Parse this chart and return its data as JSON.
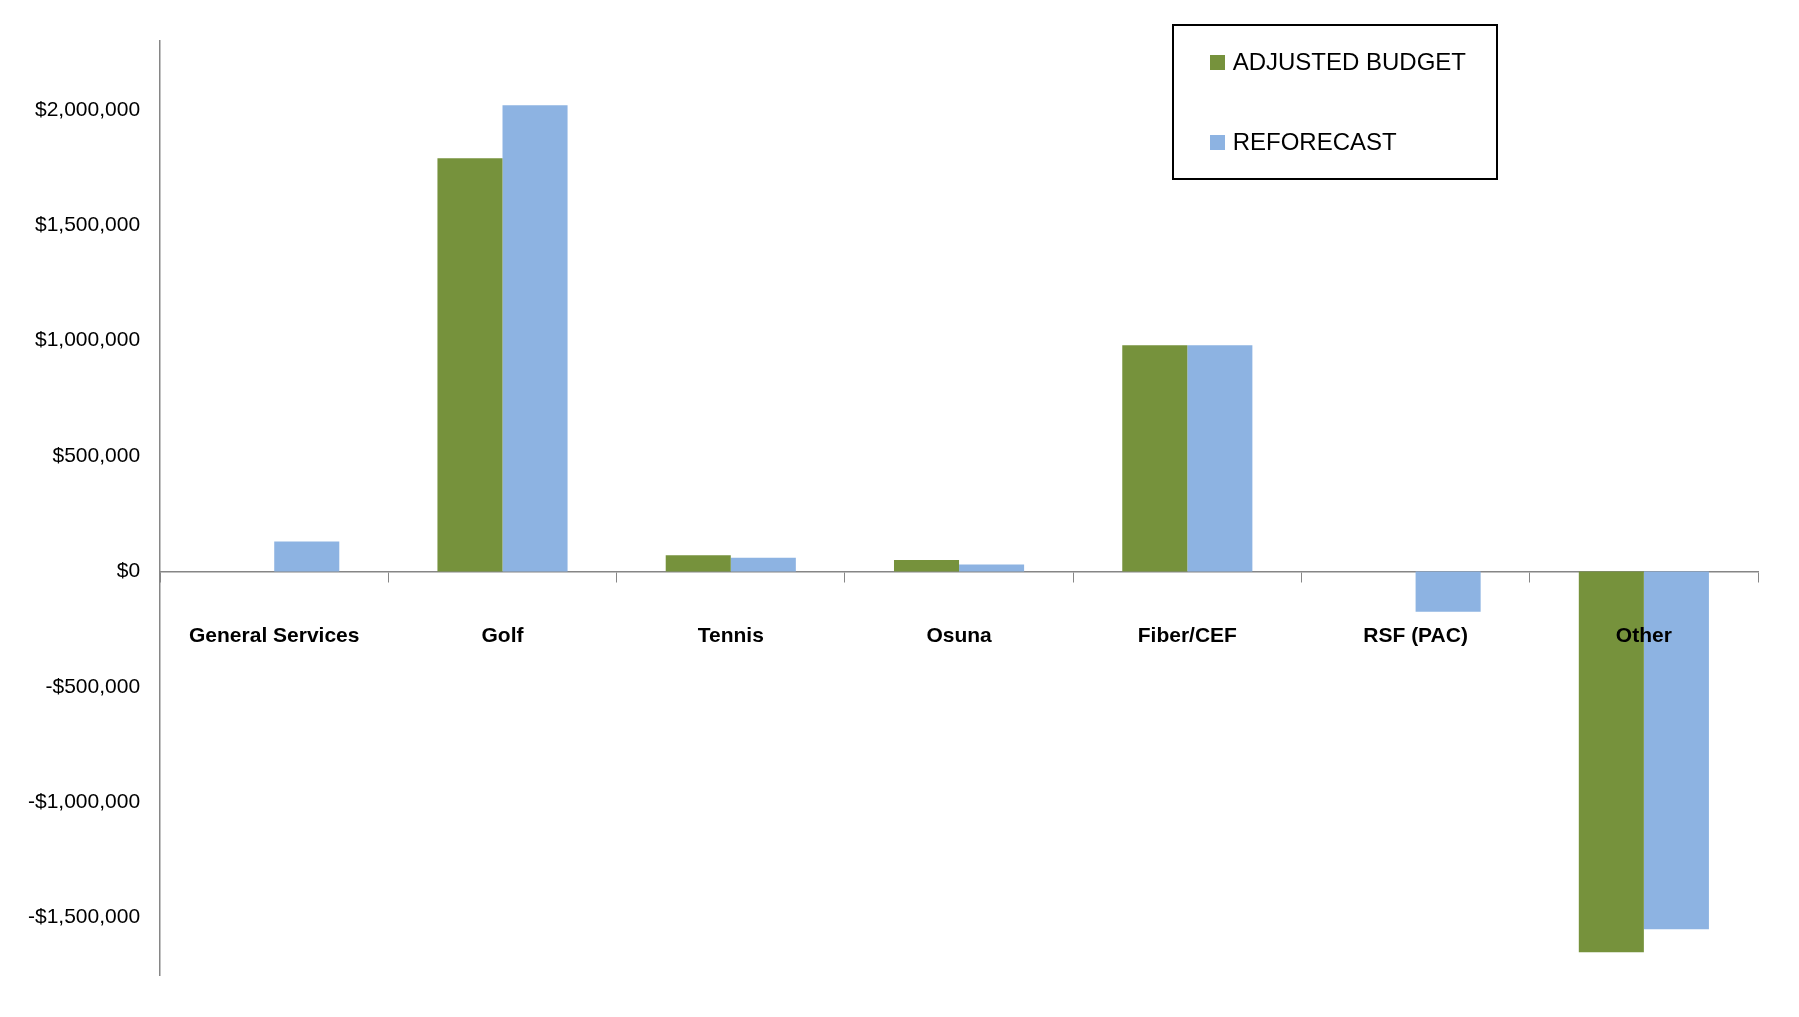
{
  "chart_data": {
    "type": "bar",
    "categories": [
      "General Services",
      "Golf",
      "Tennis",
      "Osuna",
      "Fiber/CEF",
      "RSF (PAC)",
      "Other"
    ],
    "series": [
      {
        "name": "ADJUSTED BUDGET",
        "color": "#76923c",
        "values": [
          null,
          1790000,
          70000,
          50000,
          980000,
          null,
          -1650000
        ]
      },
      {
        "name": "REFORECAST",
        "color": "#8db3e2",
        "values": [
          130000,
          2020000,
          60000,
          30000,
          980000,
          -175000,
          -1550000
        ]
      }
    ],
    "ylim": [
      -1750000,
      2300000
    ],
    "yticks": [
      {
        "value": -1500000,
        "label": "-$1,500,000"
      },
      {
        "value": -1000000,
        "label": "-$1,000,000"
      },
      {
        "value": -500000,
        "label": "-$500,000"
      },
      {
        "value": 0,
        "label": "$0"
      },
      {
        "value": 500000,
        "label": "$500,000"
      },
      {
        "value": 1000000,
        "label": "$1,000,000"
      },
      {
        "value": 1500000,
        "label": "$1,500,000"
      },
      {
        "value": 2000000,
        "label": "$2,000,000"
      }
    ],
    "grid": false,
    "legend": "top right"
  }
}
